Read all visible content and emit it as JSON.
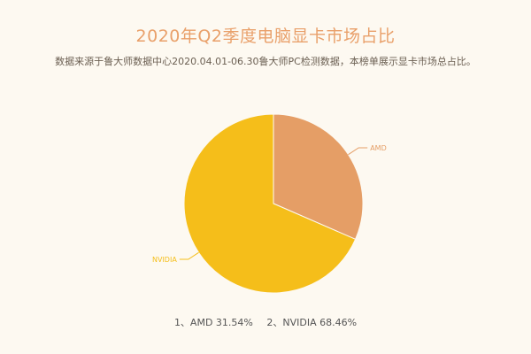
{
  "title": "2020年Q2季度电脑显卡市场占比",
  "subtitle": "数据来源于鲁大师数据中心2020.04.01-06.30鲁大师PC检测数据，本榜单展示显卡市场总占比。",
  "chart_data": {
    "type": "pie",
    "title": "2020年Q2季度电脑显卡市场占比",
    "categories": [
      "AMD",
      "NVIDIA"
    ],
    "values": [
      31.54,
      68.46
    ],
    "colors": [
      "#e59e66",
      "#f5be1a"
    ],
    "legend_placement": "bottom",
    "legend": [
      {
        "text": "1、AMD 31.54%"
      },
      {
        "text": "2、NVIDIA 68.46%"
      }
    ]
  }
}
